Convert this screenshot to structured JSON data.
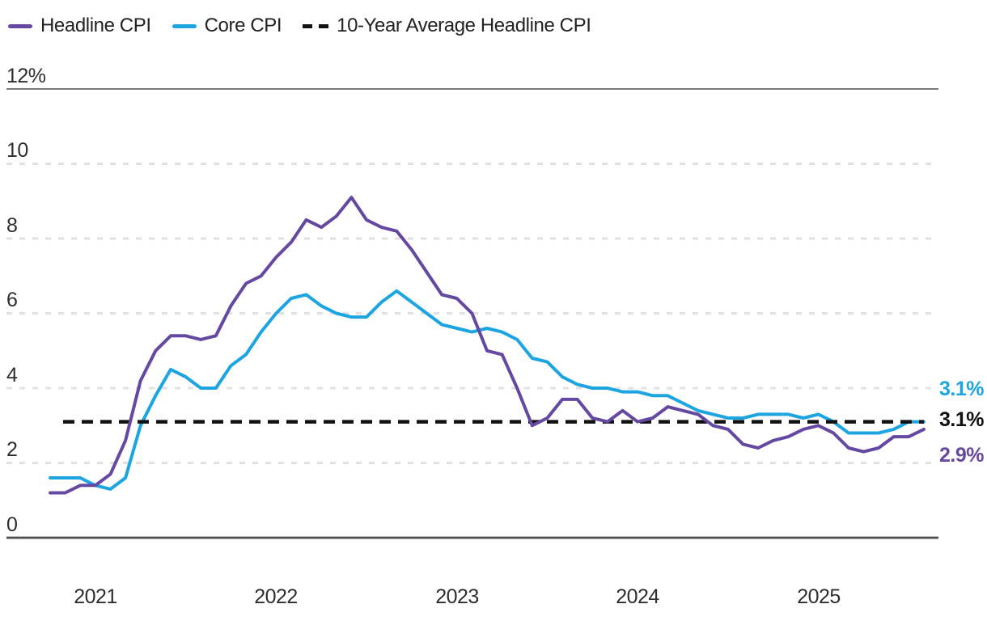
{
  "chart_data": {
    "type": "line",
    "title": "",
    "x_unit": "month",
    "x_range": [
      "2020-10",
      "2025-08"
    ],
    "x_tick_labels": [
      "2021",
      "2022",
      "2023",
      "2024",
      "2025"
    ],
    "y_tick_labels": [
      "12%",
      "10",
      "8",
      "6",
      "4",
      "2",
      "0"
    ],
    "y_tick_values": [
      12,
      10,
      8,
      6,
      4,
      2,
      0
    ],
    "ylim": [
      0,
      12
    ],
    "grid": "dashed-horizontal",
    "legend_position": "top-left",
    "series": [
      {
        "name": "Headline CPI",
        "type": "line",
        "color": "#6548A1",
        "latest_label": "2.9%",
        "values": [
          1.2,
          1.2,
          1.4,
          1.4,
          1.7,
          2.6,
          4.2,
          5.0,
          5.4,
          5.4,
          5.3,
          5.4,
          6.2,
          6.8,
          7.0,
          7.5,
          7.9,
          8.5,
          8.3,
          8.6,
          9.1,
          8.5,
          8.3,
          8.2,
          7.7,
          7.1,
          6.5,
          6.4,
          6.0,
          5.0,
          4.9,
          4.0,
          3.0,
          3.2,
          3.7,
          3.7,
          3.2,
          3.1,
          3.4,
          3.1,
          3.2,
          3.5,
          3.4,
          3.3,
          3.0,
          2.9,
          2.5,
          2.4,
          2.6,
          2.7,
          2.9,
          3.0,
          2.8,
          2.4,
          2.3,
          2.4,
          2.7,
          2.7,
          2.9
        ]
      },
      {
        "name": "Core CPI",
        "type": "line",
        "color": "#1CA5E0",
        "latest_label": "3.1%",
        "values": [
          1.6,
          1.6,
          1.6,
          1.4,
          1.3,
          1.6,
          3.0,
          3.8,
          4.5,
          4.3,
          4.0,
          4.0,
          4.6,
          4.9,
          5.5,
          6.0,
          6.4,
          6.5,
          6.2,
          6.0,
          5.9,
          5.9,
          6.3,
          6.6,
          6.3,
          6.0,
          5.7,
          5.6,
          5.5,
          5.6,
          5.5,
          5.3,
          4.8,
          4.7,
          4.3,
          4.1,
          4.0,
          4.0,
          3.9,
          3.9,
          3.8,
          3.8,
          3.6,
          3.4,
          3.3,
          3.2,
          3.2,
          3.3,
          3.3,
          3.3,
          3.2,
          3.3,
          3.1,
          2.8,
          2.8,
          2.8,
          2.9,
          3.1,
          3.1
        ]
      },
      {
        "name": "10-Year Average Headline CPI",
        "type": "reference-line",
        "style": "dashed",
        "color": "#111111",
        "value": 3.1,
        "latest_label": "3.1%"
      }
    ],
    "end_labels_top_to_bottom": [
      {
        "text": "3.1%",
        "series": "Core CPI",
        "color": "#1CA5E0"
      },
      {
        "text": "3.1%",
        "series": "10-Year Average Headline CPI",
        "color": "#111111"
      },
      {
        "text": "2.9%",
        "series": "Headline CPI",
        "color": "#6548A1"
      }
    ]
  },
  "colors": {
    "axis_line": "#4d4d4d",
    "gridline": "#e1e1e1",
    "tick_text": "#2e2e2e",
    "legend_text": "#222222"
  }
}
